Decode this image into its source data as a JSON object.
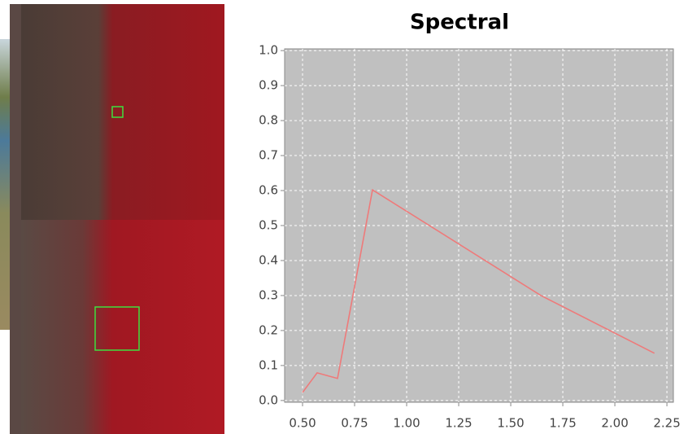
{
  "chart_data": {
    "type": "line",
    "title": "Spectral",
    "x": [
      0.5,
      0.57,
      0.668,
      0.836,
      1.645,
      2.19
    ],
    "series": [
      {
        "color": "#ee7a7a",
        "values": [
          0.023,
          0.079,
          0.063,
          0.602,
          0.3,
          0.135
        ]
      }
    ],
    "xlim": [
      0.414,
      2.281
    ],
    "xticks": [
      {
        "value": 0.5,
        "label": "0.50"
      },
      0.75,
      {
        "value": 1.0,
        "label": "1.00"
      },
      1.25,
      {
        "value": 1.5,
        "label": "1.50"
      },
      1.75,
      {
        "value": 2.0,
        "label": "2.00"
      },
      2.25
    ],
    "ylim": [
      -0.005,
      1.005
    ],
    "yticks": [
      {
        "value": 0,
        "label": "0.0"
      },
      0.1,
      0.2,
      0.3,
      0.4,
      0.5,
      0.6,
      0.7,
      0.8,
      0.9,
      {
        "value": 1,
        "label": "1.0"
      }
    ],
    "grid": true
  }
}
